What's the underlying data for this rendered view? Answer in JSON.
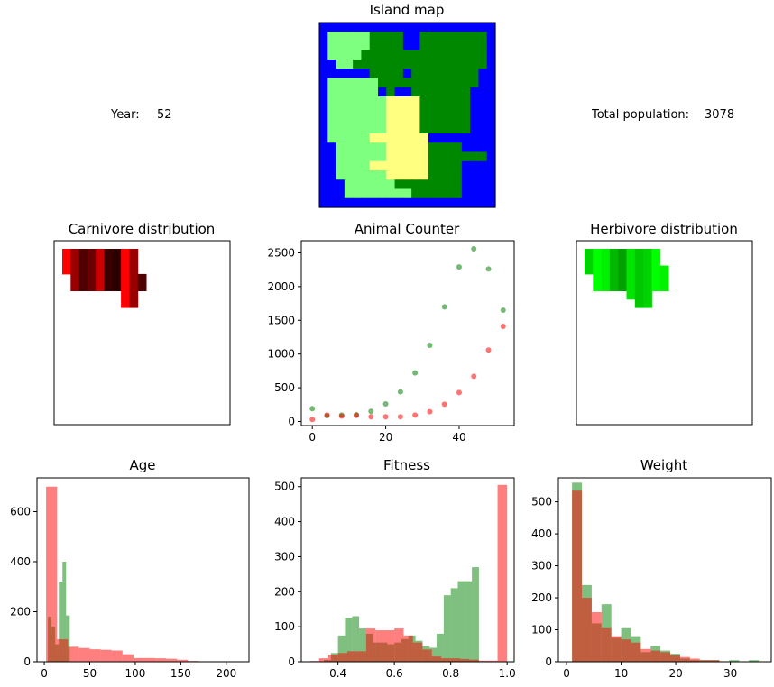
{
  "year_label": "Year:",
  "year_value": "52",
  "population_label": "Total population:",
  "population_value": "3078",
  "colors": {
    "herbivore": "#008000",
    "carnivore": "#ff0000",
    "water": "#0000ff",
    "lowland": "#008800",
    "highland": "#7fff7f",
    "desert": "#ffff80"
  },
  "island_map": {
    "title": "Island map",
    "legend_codes": {
      "W": "water",
      "L": "lowland",
      "H": "highland",
      "D": "desert"
    },
    "grid": [
      "WWWWWWWWWWWWWWWWWWWWW",
      "WHHHHHLLLLWWLLLLLLLLW",
      "WHHHHHLLLLWWLLLLLLLLW",
      "WHHHHLLLLLLLLLLLLLLLW",
      "WWHHLLLLLLLLLLLLLLLLW",
      "WWWWWWLLLLWLLLLLLLLWW",
      "WHHHHHHLLLLLLLLLLLLWW",
      "WHHHHHHWLWWLLLLLLLWWW",
      "WHHHHHHHDDDDLLLLLLWWW",
      "WHHHHHHHDDDDLLLLLLWWW",
      "WHHHHHHHDDDDLLLLLLWWW",
      "WHHHHHHHDDDDLLLLLLWWW",
      "WHHHHHDDDDDDDWWWWWWWW",
      "WWHHHHHHDDDDDLLLLWWWW",
      "WWHHHHHHDDDDDLLLLLLLW",
      "WWHHHHDDDDDDDLLLLWWWW",
      "WWHHHHHHDDDDDLLLLWWWW",
      "WWWHHHHHHLLLLLLLLWWWW",
      "WWWHHHHHHHHLLLLLLWWWW",
      "WWWWWWWWWWWWWWWWWWWWW"
    ]
  },
  "carnivore_map": {
    "title": "Carnivore distribution",
    "rows": [
      "RRDDDDDDDDRR",
      "RDKDDKKKKKRR",
      "RDKKDKKKKKDR",
      "RRDDKKKKKKDR",
      "RRDDDDDDRRRR",
      "RRRRRRRRRRRR",
      "RRRRRRRRRRRR"
    ],
    "row_extents": [
      [
        0,
        8
      ],
      [
        0,
        8
      ],
      [
        0,
        8
      ],
      [
        1,
        9
      ],
      [
        1,
        9
      ],
      [
        7,
        8
      ],
      [
        7,
        8
      ]
    ]
  },
  "herbivore_map": {
    "title": "Herbivore distribution",
    "row_extents": [
      [
        0,
        8
      ],
      [
        0,
        8
      ],
      [
        0,
        9
      ],
      [
        1,
        9
      ],
      [
        1,
        9
      ],
      [
        5,
        7
      ],
      [
        6,
        7
      ]
    ]
  },
  "chart_data": [
    {
      "type": "scatter",
      "title": "Animal Counter",
      "xlabel": "",
      "ylabel": "",
      "xlim": [
        -3,
        55
      ],
      "ylim": [
        -60,
        2680
      ],
      "xticks": [
        0,
        20,
        40
      ],
      "yticks": [
        0,
        500,
        1000,
        1500,
        2000,
        2500
      ],
      "series": [
        {
          "color": "green",
          "x": [
            0,
            4,
            8,
            12,
            16,
            20,
            24,
            28,
            32,
            36,
            40,
            44,
            48,
            52
          ],
          "y": [
            190,
            85,
            95,
            100,
            150,
            260,
            440,
            720,
            1130,
            1700,
            2290,
            2560,
            2260,
            1650
          ]
        },
        {
          "color": "red",
          "x": [
            0,
            4,
            8,
            12,
            16,
            20,
            24,
            28,
            32,
            36,
            40,
            44,
            48,
            52
          ],
          "y": [
            30,
            95,
            80,
            90,
            70,
            70,
            70,
            95,
            145,
            255,
            430,
            670,
            1060,
            1410
          ]
        }
      ]
    },
    {
      "type": "bar",
      "title": "Age",
      "xlim": [
        -8,
        225
      ],
      "ylim": [
        0,
        735
      ],
      "xticks": [
        0,
        50,
        100,
        150,
        200
      ],
      "yticks": [
        0,
        200,
        400,
        600
      ],
      "bin_width": 12,
      "series": [
        {
          "color": "herbivore",
          "edges": [
            4,
            8,
            12,
            16,
            20,
            24,
            28,
            32
          ],
          "values": [
            180,
            140,
            70,
            320,
            400,
            185,
            0
          ]
        },
        {
          "color": "carnivore",
          "edges": [
            2,
            14,
            26,
            38,
            50,
            62,
            74,
            86,
            98,
            110,
            122,
            134,
            146,
            158,
            170
          ],
          "values": [
            700,
            90,
            60,
            55,
            50,
            48,
            45,
            30,
            15,
            15,
            14,
            12,
            8,
            3
          ]
        }
      ]
    },
    {
      "type": "bar",
      "title": "Fitness",
      "xlim": [
        0.27,
        1.025
      ],
      "ylim": [
        0,
        525
      ],
      "xticks": [
        0.4,
        0.6,
        0.8,
        1.0
      ],
      "yticks": [
        0,
        100,
        200,
        300,
        400,
        500
      ],
      "series": [
        {
          "color": "herbivore",
          "edges": [
            0.35,
            0.375,
            0.4,
            0.425,
            0.45,
            0.475,
            0.5,
            0.525,
            0.55,
            0.575,
            0.6,
            0.625,
            0.65,
            0.675,
            0.7,
            0.725,
            0.75,
            0.775,
            0.8,
            0.825,
            0.85,
            0.875,
            0.9
          ],
          "values": [
            5,
            25,
            75,
            125,
            130,
            95,
            80,
            55,
            55,
            50,
            55,
            65,
            75,
            60,
            45,
            40,
            80,
            190,
            210,
            230,
            230,
            270
          ]
        },
        {
          "color": "carnivore",
          "edges": [
            0.3,
            0.333,
            0.366,
            0.4,
            0.433,
            0.466,
            0.5,
            0.533,
            0.566,
            0.6,
            0.633,
            0.666,
            0.7,
            0.733,
            0.766,
            0.8,
            0.833,
            0.866,
            0.9,
            0.933,
            0.966,
            1.0
          ],
          "values": [
            2,
            10,
            20,
            25,
            30,
            30,
            95,
            90,
            90,
            95,
            75,
            55,
            35,
            15,
            10,
            10,
            8,
            6,
            3,
            3,
            505
          ]
        }
      ]
    },
    {
      "type": "bar",
      "title": "Weight",
      "xlim": [
        -1.5,
        37.5
      ],
      "ylim": [
        0,
        575
      ],
      "xticks": [
        0,
        10,
        20,
        30
      ],
      "yticks": [
        0,
        100,
        200,
        300,
        400,
        500
      ],
      "series": [
        {
          "color": "herbivore",
          "edges": [
            1,
            2.8,
            4.6,
            6.4,
            8.2,
            10,
            11.8,
            13.6,
            15.4,
            17.2,
            19,
            20.8,
            22.6,
            24.4,
            26.2,
            28,
            29.8,
            31.6,
            33.4,
            35.2
          ],
          "values": [
            560,
            240,
            120,
            180,
            75,
            105,
            80,
            30,
            50,
            35,
            25,
            10,
            5,
            5,
            5,
            0,
            5,
            0,
            5
          ]
        },
        {
          "color": "carnivore",
          "edges": [
            1,
            2.8,
            4.6,
            6.4,
            8.2,
            10,
            11.8,
            13.6,
            15.4,
            17.2,
            19,
            20.8,
            22.6,
            24.4,
            26.2,
            28
          ],
          "values": [
            535,
            200,
            155,
            105,
            80,
            70,
            60,
            40,
            35,
            30,
            20,
            15,
            10,
            5,
            5
          ]
        }
      ]
    }
  ]
}
